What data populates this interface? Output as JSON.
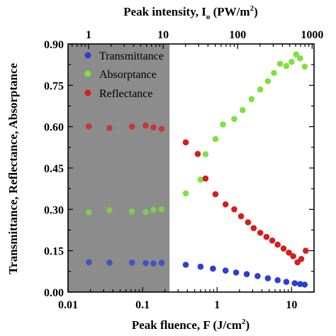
{
  "chart_data": {
    "type": "scatter",
    "x_axis": {
      "label_main": "Peak fluence, F (J/cm",
      "label_sup": "2",
      "label_end": ")",
      "scale": "log",
      "range": [
        0.01,
        20
      ],
      "ticks": [
        0.01,
        0.1,
        1,
        10
      ],
      "tick_labels": [
        "0.01",
        "0.1",
        "1",
        "10"
      ]
    },
    "x2_axis": {
      "label_main": "Peak intensity, I",
      "label_sub": "o",
      "label_mid": " (PW/m",
      "label_sup": "2",
      "label_end": ")",
      "scale": "log",
      "range": [
        0.53,
        1060
      ],
      "ticks": [
        1,
        10,
        100,
        1000
      ],
      "tick_labels": [
        "1",
        "10",
        "100",
        "1000"
      ]
    },
    "y_axis": {
      "label": "Transmittance, Reflectance, Absorptance",
      "range": [
        0,
        0.9
      ],
      "ticks": [
        0,
        0.15,
        0.3,
        0.45,
        0.6,
        0.75,
        0.9
      ],
      "tick_labels": [
        "0.00",
        "0.15",
        "0.30",
        "0.45",
        "0.60",
        "0.75",
        "0.90"
      ]
    },
    "shaded_region": {
      "x_range": [
        0.01,
        0.23
      ],
      "color": "#8c8c8c"
    },
    "legend_position": "top-left",
    "series": [
      {
        "name": "Transmittance",
        "color": "#2a3fd4",
        "points": [
          [
            0.019,
            0.108
          ],
          [
            0.036,
            0.107
          ],
          [
            0.072,
            0.107
          ],
          [
            0.11,
            0.105
          ],
          [
            0.14,
            0.104
          ],
          [
            0.18,
            0.106
          ],
          [
            0.38,
            0.099
          ],
          [
            0.6,
            0.092
          ],
          [
            0.88,
            0.085
          ],
          [
            1.3,
            0.078
          ],
          [
            1.8,
            0.071
          ],
          [
            2.5,
            0.065
          ],
          [
            3.5,
            0.058
          ],
          [
            4.8,
            0.05
          ],
          [
            6.5,
            0.043
          ],
          [
            8.5,
            0.037
          ],
          [
            11,
            0.032
          ],
          [
            13,
            0.029
          ],
          [
            15,
            0.027
          ]
        ]
      },
      {
        "name": "Absorptance",
        "color": "#7ee23c",
        "points": [
          [
            0.019,
            0.289
          ],
          [
            0.036,
            0.297
          ],
          [
            0.072,
            0.292
          ],
          [
            0.11,
            0.29
          ],
          [
            0.14,
            0.298
          ],
          [
            0.18,
            0.3
          ],
          [
            0.38,
            0.358
          ],
          [
            0.6,
            0.408
          ],
          [
            0.7,
            0.5
          ],
          [
            0.95,
            0.555
          ],
          [
            1.2,
            0.608
          ],
          [
            1.7,
            0.628
          ],
          [
            2.2,
            0.66
          ],
          [
            2.9,
            0.7
          ],
          [
            3.8,
            0.735
          ],
          [
            4.8,
            0.765
          ],
          [
            5.8,
            0.795
          ],
          [
            7,
            0.828
          ],
          [
            8.5,
            0.82
          ],
          [
            10,
            0.835
          ],
          [
            11.5,
            0.862
          ],
          [
            13,
            0.848
          ],
          [
            15,
            0.818
          ]
        ]
      },
      {
        "name": "Reflectance",
        "color": "#d61d1d",
        "points": [
          [
            0.019,
            0.601
          ],
          [
            0.036,
            0.595
          ],
          [
            0.072,
            0.6
          ],
          [
            0.11,
            0.604
          ],
          [
            0.14,
            0.597
          ],
          [
            0.18,
            0.592
          ],
          [
            0.38,
            0.543
          ],
          [
            0.55,
            0.501
          ],
          [
            0.7,
            0.412
          ],
          [
            0.95,
            0.355
          ],
          [
            1.3,
            0.318
          ],
          [
            1.7,
            0.3
          ],
          [
            2.1,
            0.275
          ],
          [
            2.6,
            0.253
          ],
          [
            3.1,
            0.232
          ],
          [
            3.8,
            0.215
          ],
          [
            4.6,
            0.2
          ],
          [
            5.5,
            0.187
          ],
          [
            6.5,
            0.172
          ],
          [
            7.8,
            0.158
          ],
          [
            9.2,
            0.143
          ],
          [
            10.5,
            0.13
          ],
          [
            12,
            0.108
          ],
          [
            13.5,
            0.12
          ],
          [
            15.5,
            0.15
          ]
        ]
      }
    ]
  }
}
